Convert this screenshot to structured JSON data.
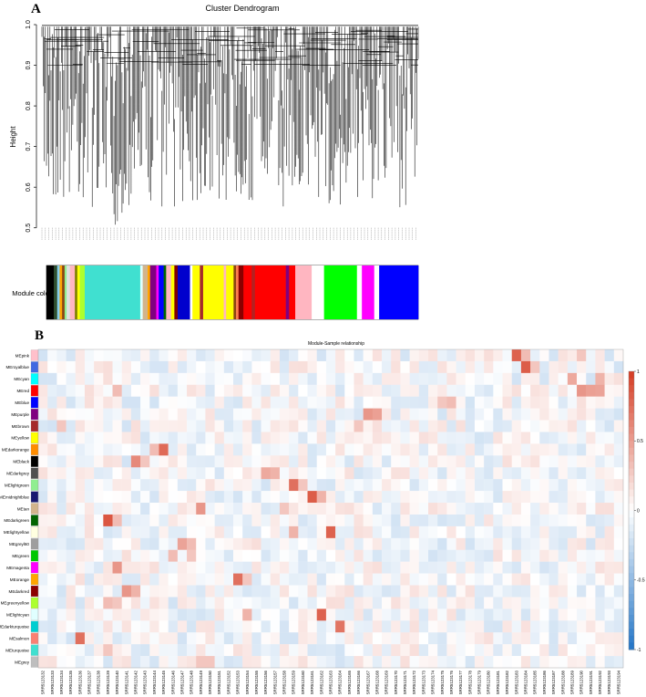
{
  "panel_a": {
    "label": "A",
    "title": "Cluster Dendrogram",
    "ylabel": "Height",
    "color_row_label": "Module colors"
  },
  "panel_b": {
    "label": "B",
    "title": "Module-Sample relationship"
  },
  "chart_data": [
    {
      "type": "dendrogram",
      "title": "Cluster Dendrogram",
      "xlabel": "",
      "ylabel": "Height",
      "ylim": [
        0.45,
        1.0
      ],
      "yticks": [
        0.5,
        0.6,
        0.7,
        0.8,
        0.9,
        1.0
      ],
      "module_color_blocks": [
        [
          "#000000",
          0.018
        ],
        [
          "#2f4f2f",
          0.008
        ],
        [
          "#87ceeb",
          0.006
        ],
        [
          "#ffa500",
          0.006
        ],
        [
          "#8b4513",
          0.006
        ],
        [
          "#90ee90",
          0.005
        ],
        [
          "#e0e0e0",
          0.008
        ],
        [
          "#ffb6c1",
          0.012
        ],
        [
          "#808000",
          0.006
        ],
        [
          "#ffff00",
          0.006
        ],
        [
          "#adff2f",
          0.012
        ],
        [
          "#40e0d0",
          0.135
        ],
        [
          "#e0ffff",
          0.006
        ],
        [
          "#d2b48c",
          0.012
        ],
        [
          "#ffa500",
          0.006
        ],
        [
          "#800080",
          0.015
        ],
        [
          "#ff00ff",
          0.006
        ],
        [
          "#0000ff",
          0.012
        ],
        [
          "#006400",
          0.006
        ],
        [
          "#ffb6c1",
          0.012
        ],
        [
          "#ffff00",
          0.008
        ],
        [
          "#800000",
          0.008
        ],
        [
          "#0000cd",
          0.03
        ],
        [
          "#ffffff",
          0.006
        ],
        [
          "#ffff00",
          0.018
        ],
        [
          "#a52a2a",
          0.008
        ],
        [
          "#ffff00",
          0.05
        ],
        [
          "#ffb6c1",
          0.006
        ],
        [
          "#ffff00",
          0.018
        ],
        [
          "#8b4513",
          0.006
        ],
        [
          "#ff7f50",
          0.006
        ],
        [
          "#8b0000",
          0.012
        ],
        [
          "#ff0000",
          0.02
        ],
        [
          "#b22222",
          0.008
        ],
        [
          "#ff0000",
          0.075
        ],
        [
          "#800080",
          0.008
        ],
        [
          "#ff0000",
          0.015
        ],
        [
          "#ffb6c1",
          0.04
        ],
        [
          "#ffffff",
          0.03
        ],
        [
          "#00ff00",
          0.08
        ],
        [
          "#ffffff",
          0.012
        ],
        [
          "#ff00ff",
          0.03
        ],
        [
          "#ffffff",
          0.012
        ],
        [
          "#0000ff",
          0.095
        ]
      ]
    },
    {
      "type": "heatmap",
      "title": "Module-Sample relationship",
      "row_labels": [
        "MEpink",
        "MEroyalblue",
        "MEcyan",
        "MEred",
        "MEblue",
        "MEpurple",
        "MEbrown",
        "MEyellow",
        "MEdarkorange",
        "MEblack",
        "MEdarkgrey",
        "MElightgreen",
        "MEmidnightblue",
        "MEtan",
        "MEdarkgreen",
        "MElightyellow",
        "MEgreyl60",
        "MEgreen",
        "MEmagenta",
        "MEorange",
        "MEdarkred",
        "MEgreenyellow",
        "MElightcyan",
        "MEdarkturquoise",
        "MEsalmon",
        "MEturquoise",
        "MEgrey"
      ],
      "row_colors": [
        "#ffc0cb",
        "#4169e1",
        "#00ffff",
        "#ff0000",
        "#0000ff",
        "#800080",
        "#a52a2a",
        "#ffff00",
        "#ff8c00",
        "#000000",
        "#505050",
        "#90ee90",
        "#191970",
        "#d2b48c",
        "#006400",
        "#ffffe0",
        "#9e9e9e",
        "#00c800",
        "#ff00ff",
        "#ffa500",
        "#8b0000",
        "#adff2f",
        "#e0ffff",
        "#00ced1",
        "#fa8072",
        "#40e0d0",
        "#bebebe"
      ],
      "col_labels": [
        "SRR5123132",
        "SRR5123133",
        "SRR5123134",
        "SRR5123135",
        "SRR5123136",
        "SRR5123137",
        "SRR5123138",
        "SRR5123139",
        "SRR5123140",
        "SRR5123141",
        "SRR5123142",
        "SRR5123143",
        "SRR5123144",
        "SRR5123145",
        "SRR5123146",
        "SRR5123147",
        "SRR5123148",
        "SRR5123149",
        "SRR5123150",
        "SRR5123151",
        "SRR5123152",
        "SRR5123153",
        "SRR5123154",
        "SRR5123155",
        "SRR5123156",
        "SRR5123157",
        "SRR5123158",
        "SRR5123159",
        "SRR5123160",
        "SRR5123161",
        "SRR5123162",
        "SRR5123163",
        "SRR5123164",
        "SRR5123165",
        "SRR5123166",
        "SRR5123167",
        "SRR5123168",
        "SRR5123169",
        "SRR5123170",
        "SRR5123171",
        "SRR5123172",
        "SRR5123173",
        "SRR5123174",
        "SRR5123175",
        "SRR5123176",
        "SRR5123177",
        "SRR5123178",
        "SRR5123179",
        "SRR5123180",
        "SRR5123181",
        "SRR5123182",
        "SRR5123183",
        "SRR5123184",
        "SRR5123185",
        "SRR5123186",
        "SRR5123187",
        "SRR5123188",
        "SRR5123189",
        "SRR5123190",
        "SRR5123191",
        "SRR5123192",
        "SRR5123193",
        "SRR5123194"
      ],
      "hot_cells": [
        [
          0,
          51,
          0.82
        ],
        [
          0,
          52,
          0.35
        ],
        [
          0,
          58,
          0.3
        ],
        [
          1,
          52,
          0.85
        ],
        [
          1,
          53,
          0.3
        ],
        [
          2,
          57,
          0.45
        ],
        [
          2,
          60,
          0.4
        ],
        [
          3,
          58,
          0.55
        ],
        [
          3,
          59,
          0.5
        ],
        [
          3,
          60,
          0.48
        ],
        [
          3,
          8,
          0.35
        ],
        [
          4,
          43,
          0.3
        ],
        [
          4,
          44,
          0.35
        ],
        [
          5,
          35,
          0.55
        ],
        [
          5,
          36,
          0.5
        ],
        [
          6,
          2,
          0.3
        ],
        [
          6,
          34,
          0.3
        ],
        [
          8,
          13,
          0.78
        ],
        [
          8,
          12,
          0.35
        ],
        [
          9,
          10,
          0.62
        ],
        [
          9,
          11,
          0.3
        ],
        [
          10,
          24,
          0.45
        ],
        [
          10,
          25,
          0.4
        ],
        [
          11,
          27,
          0.75
        ],
        [
          11,
          28,
          0.3
        ],
        [
          12,
          29,
          0.85
        ],
        [
          12,
          30,
          0.4
        ],
        [
          13,
          17,
          0.55
        ],
        [
          13,
          26,
          0.3
        ],
        [
          14,
          7,
          0.88
        ],
        [
          14,
          8,
          0.35
        ],
        [
          15,
          27,
          0.4
        ],
        [
          15,
          31,
          0.82
        ],
        [
          16,
          15,
          0.48
        ],
        [
          16,
          16,
          0.35
        ],
        [
          17,
          14,
          0.35
        ],
        [
          17,
          16,
          0.3
        ],
        [
          18,
          8,
          0.55
        ],
        [
          19,
          21,
          0.75
        ],
        [
          19,
          22,
          0.3
        ],
        [
          20,
          9,
          0.55
        ],
        [
          20,
          10,
          0.4
        ],
        [
          21,
          7,
          0.35
        ],
        [
          21,
          8,
          0.3
        ],
        [
          22,
          22,
          0.4
        ],
        [
          22,
          30,
          0.82
        ],
        [
          23,
          32,
          0.72
        ],
        [
          24,
          4,
          0.75
        ],
        [
          25,
          7,
          0.3
        ],
        [
          26,
          17,
          0.3
        ],
        [
          26,
          18,
          0.3
        ]
      ],
      "colorbar_ticks": [
        1,
        0.5,
        0,
        -0.5,
        -1
      ],
      "value_range": [
        -1,
        1
      ]
    }
  ]
}
